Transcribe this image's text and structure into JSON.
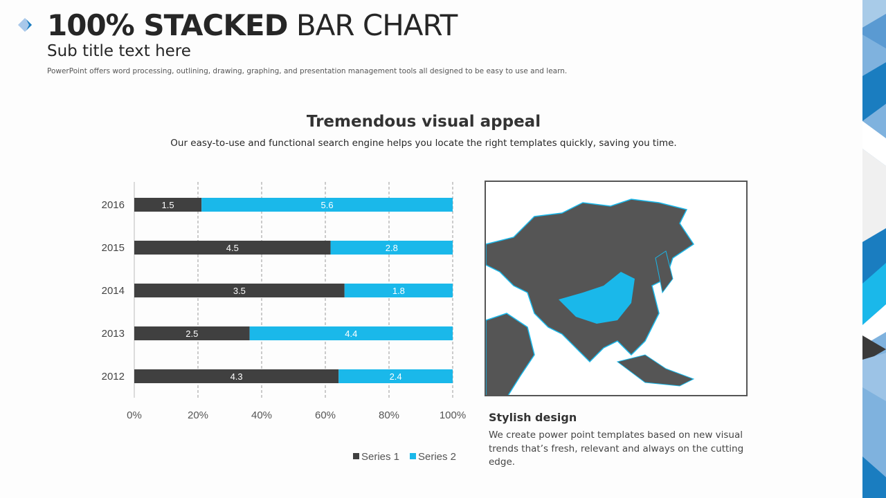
{
  "header": {
    "title_bold": "100% STACKED",
    "title_light": "BAR CHART",
    "subtitle": "Sub title text here",
    "description": "PowerPoint offers word processing, outlining, drawing, graphing, and presentation management tools all designed to be easy to use and learn."
  },
  "section": {
    "title": "Tremendous visual appeal",
    "description": "Our easy-to-use and functional search engine helps you locate the right templates quickly, saving you time."
  },
  "side": {
    "title": "Stylish design",
    "text": "We create power point templates based on new visual trends that’s fresh, relevant and always on the cutting edge."
  },
  "colors": {
    "series1": "#404040",
    "series2": "#1ab8ea",
    "accent": "#1a7dc0"
  },
  "chart_data": {
    "type": "bar",
    "orientation": "horizontal",
    "stacked": "100%",
    "categories": [
      "2012",
      "2013",
      "2014",
      "2015",
      "2016"
    ],
    "series": [
      {
        "name": "Series 1",
        "values": [
          4.3,
          2.5,
          3.5,
          4.5,
          1.5
        ]
      },
      {
        "name": "Series 2",
        "values": [
          2.4,
          4.4,
          1.8,
          2.8,
          5.6
        ]
      }
    ],
    "xticks": [
      "0%",
      "20%",
      "40%",
      "60%",
      "80%",
      "100%"
    ],
    "xlim": [
      0,
      100
    ],
    "grid": "vertical dashed",
    "legend": "bottom"
  }
}
